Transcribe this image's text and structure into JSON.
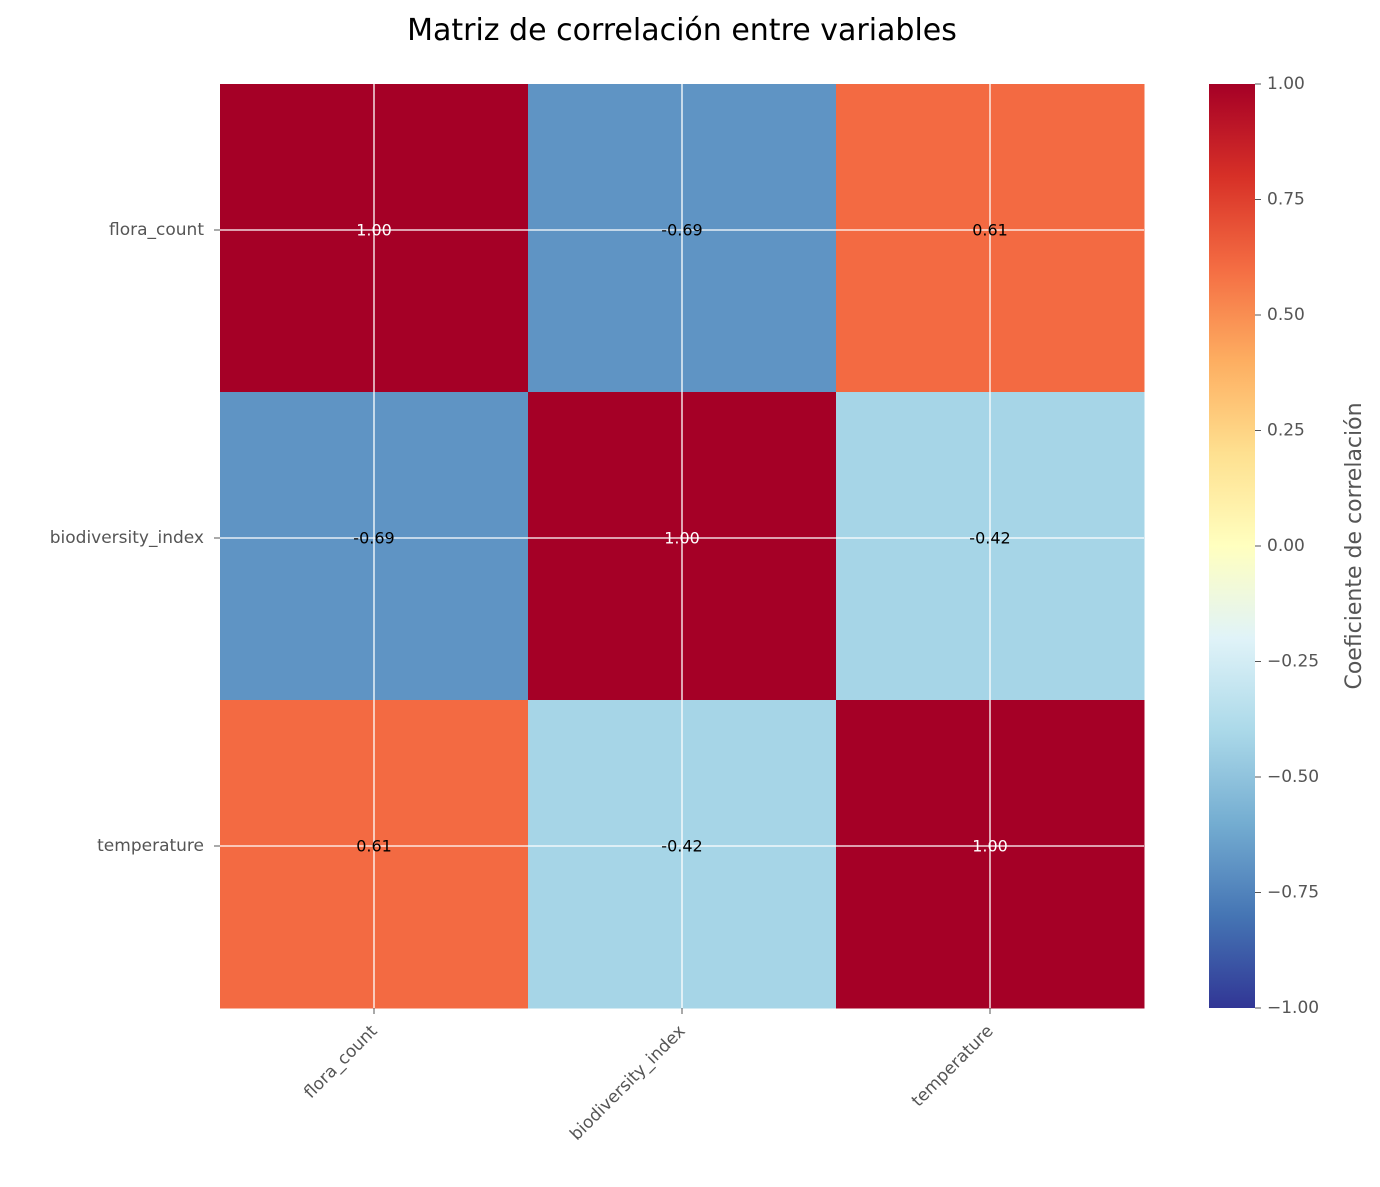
{
  "chart_data": {
    "type": "heatmap",
    "title": "Matriz de correlación entre variables",
    "x_categories": [
      "flora_count",
      "biodiversity_index",
      "temperature"
    ],
    "y_categories": [
      "flora_count",
      "biodiversity_index",
      "temperature"
    ],
    "values": [
      [
        1.0,
        -0.69,
        0.61
      ],
      [
        -0.69,
        1.0,
        -0.42
      ],
      [
        0.61,
        -0.42,
        1.0
      ]
    ],
    "value_labels": [
      [
        "1.00",
        "-0.69",
        "0.61"
      ],
      [
        "-0.69",
        "1.00",
        "-0.42"
      ],
      [
        "0.61",
        "-0.42",
        "1.00"
      ]
    ],
    "colorbar": {
      "label": "Coeficiente de correlación",
      "range": [
        -1.0,
        1.0
      ],
      "ticks": [
        1.0,
        0.75,
        0.5,
        0.25,
        0.0,
        -0.25,
        -0.5,
        -0.75,
        -1.0
      ],
      "tick_labels": [
        "1.00",
        "0.75",
        "0.50",
        "0.25",
        "0.00",
        "−0.25",
        "−0.50",
        "−0.75",
        "−1.00"
      ],
      "colormap": "RdYlBu_r"
    },
    "grid": true,
    "x_tick_rotation": "45deg"
  }
}
